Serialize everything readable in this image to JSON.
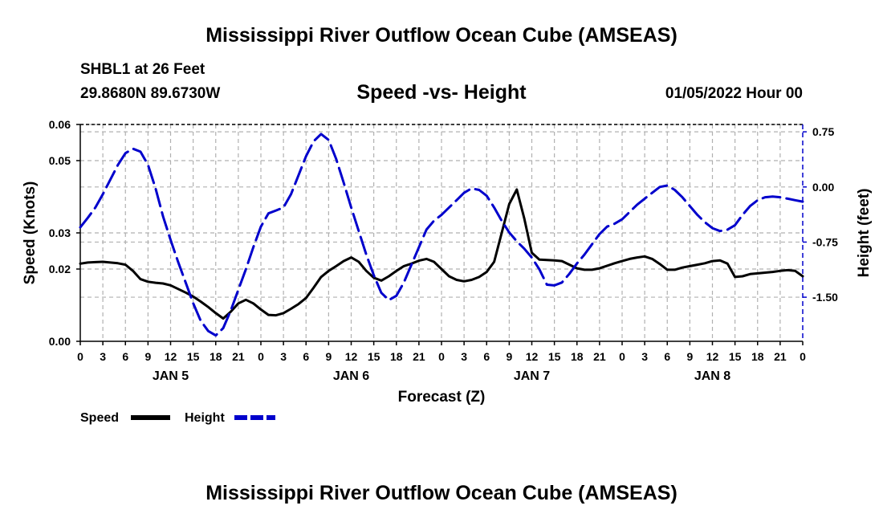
{
  "page": {
    "title": "Mississippi River Outflow Ocean Cube (AMSEAS)",
    "station": "SHBL1 at 26 Feet",
    "coords": "29.8680N  89.6730W",
    "chart_title": "Speed -vs- Height",
    "timestamp": "01/05/2022 Hour 00",
    "bottom_title": "Mississippi River Outflow Ocean Cube (AMSEAS)"
  },
  "colors": {
    "speed": "#000000",
    "height": "#0000cc",
    "grid": "#b0b0b0"
  },
  "chart_data": {
    "type": "line",
    "title": "Speed -vs- Height",
    "xlabel": "Forecast (Z)",
    "ylabel": "Speed (Knots)",
    "y2label": "Height (feet)",
    "xlim": [
      0,
      96
    ],
    "ylim": [
      0.0,
      0.06
    ],
    "y2lim": [
      -2.1,
      0.85
    ],
    "x_tick_labels": [
      "0",
      "3",
      "6",
      "9",
      "12",
      "15",
      "18",
      "21",
      "0",
      "3",
      "6",
      "9",
      "12",
      "15",
      "18",
      "21",
      "0",
      "3",
      "6",
      "9",
      "12",
      "15",
      "18",
      "21",
      "0",
      "3",
      "6",
      "9",
      "12",
      "15",
      "18",
      "21",
      "0"
    ],
    "y_ticks": [
      0.0,
      0.02,
      0.03,
      0.05,
      0.06
    ],
    "y_tick_labels": [
      "0.00",
      "0.02",
      "0.03",
      "0.05",
      "0.06"
    ],
    "y2_ticks": [
      0.75,
      0.0,
      -0.75,
      -1.5
    ],
    "y2_tick_labels": [
      "0.75",
      "0.00",
      "-0.75",
      "-1.50"
    ],
    "day_labels": [
      {
        "label": "JAN 5",
        "x": 12
      },
      {
        "label": "JAN 6",
        "x": 36
      },
      {
        "label": "JAN 7",
        "x": 60
      },
      {
        "label": "JAN 8",
        "x": 84
      }
    ],
    "legend": [
      "Speed",
      "Height"
    ],
    "series": [
      {
        "name": "Speed",
        "color": "#000000",
        "dash": "solid",
        "axis": "left",
        "x": [
          0,
          1,
          2,
          3,
          4,
          5,
          6,
          7,
          8,
          9,
          10,
          11,
          12,
          13,
          14,
          15,
          16,
          17,
          18,
          19,
          20,
          21,
          22,
          23,
          24,
          25,
          26,
          27,
          28,
          29,
          30,
          31,
          32,
          33,
          34,
          35,
          36,
          37,
          38,
          39,
          40,
          41,
          42,
          43,
          44,
          45,
          46,
          47,
          48,
          49,
          50,
          51,
          52,
          53,
          54,
          55,
          56,
          57,
          58,
          59,
          60,
          61,
          62,
          63,
          64,
          65,
          66,
          67,
          68,
          69,
          70,
          71,
          72,
          73,
          74,
          75,
          76,
          77,
          78,
          79,
          80,
          81,
          82,
          83,
          84,
          85,
          86,
          87,
          88,
          89,
          90,
          91,
          92,
          93,
          94,
          95,
          96
        ],
        "values": [
          0.0215,
          0.0218,
          0.0219,
          0.022,
          0.0218,
          0.0216,
          0.0212,
          0.0195,
          0.0172,
          0.0165,
          0.0162,
          0.016,
          0.0155,
          0.0145,
          0.0135,
          0.0124,
          0.011,
          0.0095,
          0.0078,
          0.0063,
          0.0082,
          0.0105,
          0.0115,
          0.0105,
          0.0088,
          0.0073,
          0.0072,
          0.0078,
          0.009,
          0.0103,
          0.012,
          0.0148,
          0.0178,
          0.0195,
          0.0208,
          0.0222,
          0.0232,
          0.022,
          0.0195,
          0.0176,
          0.0168,
          0.018,
          0.0195,
          0.0208,
          0.0215,
          0.0223,
          0.0228,
          0.022,
          0.02,
          0.018,
          0.017,
          0.0166,
          0.017,
          0.0178,
          0.0192,
          0.022,
          0.03,
          0.038,
          0.042,
          0.034,
          0.0245,
          0.0226,
          0.0225,
          0.0224,
          0.0222,
          0.0212,
          0.0202,
          0.0198,
          0.0198,
          0.0202,
          0.0209,
          0.0216,
          0.0222,
          0.0228,
          0.0232,
          0.0235,
          0.0228,
          0.0214,
          0.0198,
          0.0198,
          0.0204,
          0.0208,
          0.0212,
          0.0216,
          0.0222,
          0.0224,
          0.0215,
          0.0178,
          0.018,
          0.0186,
          0.0188,
          0.019,
          0.0192,
          0.0195,
          0.0197,
          0.0195,
          0.018
        ]
      },
      {
        "name": "Height",
        "color": "#0000cc",
        "dash": "dashed",
        "axis": "right",
        "x": [
          0,
          1,
          2,
          3,
          4,
          5,
          6,
          7,
          8,
          9,
          10,
          11,
          12,
          13,
          14,
          15,
          16,
          17,
          18,
          19,
          20,
          21,
          22,
          23,
          24,
          25,
          26,
          27,
          28,
          29,
          30,
          31,
          32,
          33,
          34,
          35,
          36,
          37,
          38,
          39,
          40,
          41,
          42,
          43,
          44,
          45,
          46,
          47,
          48,
          49,
          50,
          51,
          52,
          53,
          54,
          55,
          56,
          57,
          58,
          59,
          60,
          61,
          62,
          63,
          64,
          65,
          66,
          67,
          68,
          69,
          70,
          71,
          72,
          73,
          74,
          75,
          76,
          77,
          78,
          79,
          80,
          81,
          82,
          83,
          84,
          85,
          86,
          87,
          88,
          89,
          90,
          91,
          92,
          93,
          94,
          95,
          96
        ],
        "values": [
          -0.55,
          -0.42,
          -0.28,
          -0.1,
          0.1,
          0.3,
          0.46,
          0.52,
          0.48,
          0.3,
          -0.02,
          -0.4,
          -0.72,
          -1.02,
          -1.3,
          -1.58,
          -1.82,
          -1.96,
          -2.02,
          -1.92,
          -1.68,
          -1.4,
          -1.12,
          -0.82,
          -0.54,
          -0.36,
          -0.32,
          -0.28,
          -0.1,
          0.16,
          0.42,
          0.62,
          0.72,
          0.64,
          0.38,
          0.06,
          -0.28,
          -0.6,
          -0.92,
          -1.2,
          -1.44,
          -1.54,
          -1.48,
          -1.3,
          -1.06,
          -0.82,
          -0.58,
          -0.46,
          -0.38,
          -0.28,
          -0.18,
          -0.08,
          -0.02,
          -0.04,
          -0.12,
          -0.28,
          -0.46,
          -0.62,
          -0.74,
          -0.84,
          -0.96,
          -1.12,
          -1.33,
          -1.34,
          -1.3,
          -1.18,
          -1.04,
          -0.92,
          -0.78,
          -0.64,
          -0.54,
          -0.5,
          -0.44,
          -0.34,
          -0.24,
          -0.16,
          -0.08,
          0.0,
          0.02,
          -0.04,
          -0.14,
          -0.26,
          -0.38,
          -0.48,
          -0.56,
          -0.6,
          -0.58,
          -0.52,
          -0.38,
          -0.26,
          -0.18,
          -0.14,
          -0.13,
          -0.14,
          -0.16,
          -0.18,
          -0.2
        ]
      }
    ]
  }
}
